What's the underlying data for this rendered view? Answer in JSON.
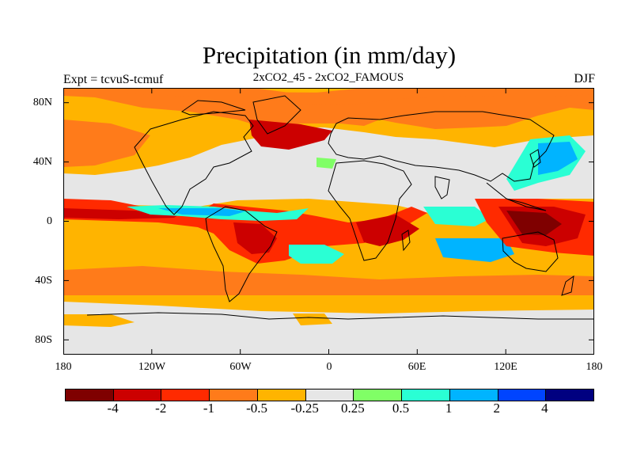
{
  "title": "Precipitation (in mm/day)",
  "subtitle": "2xCO2_45 - 2xCO2_FAMOUS",
  "left_label": "Expt = tcvuS-tcmuf",
  "right_label": "DJF",
  "latitude_ticks": [
    "80N",
    "40N",
    "0",
    "40S",
    "80S"
  ],
  "longitude_ticks": [
    "180",
    "120W",
    "60W",
    "0",
    "60E",
    "120E",
    "180"
  ],
  "colorbar": {
    "labels": [
      "-4",
      "-2",
      "-1",
      "-0.5",
      "-0.25",
      "0.25",
      "0.5",
      "1",
      "2",
      "4"
    ],
    "colors": [
      "#7f0000",
      "#cc0000",
      "#ff2a00",
      "#ff7b1a",
      "#ffb400",
      "#e6e6e6",
      "#80ff66",
      "#2affd4",
      "#00b4ff",
      "#0044ff",
      "#000080"
    ]
  },
  "colors": {
    "background_neutral": "#e6e6e6",
    "coastline": "#000000"
  }
}
